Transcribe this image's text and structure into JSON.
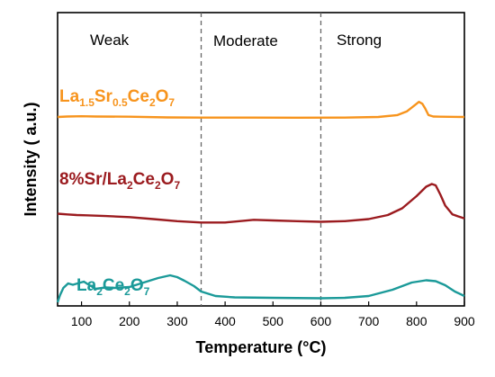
{
  "chart_data": {
    "type": "line",
    "xlabel": "Temperature (°C)",
    "ylabel": "Intensity ( a.u.)",
    "xlim": [
      50,
      900
    ],
    "xticks": [
      100,
      200,
      300,
      400,
      500,
      600,
      700,
      800,
      900
    ],
    "regions": [
      {
        "label": "Weak"
      },
      {
        "label": "Moderate"
      },
      {
        "label": "Strong"
      }
    ],
    "dividers": [
      350,
      600
    ],
    "grid": false,
    "legend": "none",
    "series": [
      {
        "name": "La1.5Sr0.5Ce2O7",
        "label_parts": [
          [
            "La",
            ""
          ],
          [
            "1.5",
            "sub"
          ],
          [
            "Sr",
            ""
          ],
          [
            "0.5",
            "sub"
          ],
          [
            "Ce",
            ""
          ],
          [
            "2",
            "sub"
          ],
          [
            "O",
            ""
          ],
          [
            "7",
            "sub"
          ]
        ],
        "color": "#F7941D",
        "points": [
          [
            50,
            0.84
          ],
          [
            70,
            0.845
          ],
          [
            100,
            0.848
          ],
          [
            130,
            0.845
          ],
          [
            200,
            0.843
          ],
          [
            280,
            0.835
          ],
          [
            350,
            0.833
          ],
          [
            450,
            0.833
          ],
          [
            550,
            0.832
          ],
          [
            650,
            0.833
          ],
          [
            720,
            0.84
          ],
          [
            760,
            0.86
          ],
          [
            780,
            0.9
          ],
          [
            795,
            0.96
          ],
          [
            805,
            1.0
          ],
          [
            812,
            0.98
          ],
          [
            818,
            0.93
          ],
          [
            825,
            0.86
          ],
          [
            835,
            0.845
          ],
          [
            850,
            0.843
          ],
          [
            900,
            0.84
          ]
        ]
      },
      {
        "name": "8%Sr/La2Ce2O7",
        "label_parts": [
          [
            "8%Sr/La",
            ""
          ],
          [
            "2",
            "sub"
          ],
          [
            "Ce",
            ""
          ],
          [
            "2",
            "sub"
          ],
          [
            "O",
            ""
          ],
          [
            "7",
            "sub"
          ]
        ],
        "color": "#9B1B1F",
        "points": [
          [
            50,
            0.56
          ],
          [
            70,
            0.555
          ],
          [
            90,
            0.55
          ],
          [
            110,
            0.548
          ],
          [
            150,
            0.543
          ],
          [
            200,
            0.535
          ],
          [
            250,
            0.52
          ],
          [
            300,
            0.505
          ],
          [
            350,
            0.495
          ],
          [
            400,
            0.495
          ],
          [
            430,
            0.505
          ],
          [
            460,
            0.515
          ],
          [
            500,
            0.51
          ],
          [
            550,
            0.505
          ],
          [
            600,
            0.5
          ],
          [
            650,
            0.505
          ],
          [
            700,
            0.52
          ],
          [
            740,
            0.55
          ],
          [
            770,
            0.6
          ],
          [
            800,
            0.69
          ],
          [
            820,
            0.76
          ],
          [
            832,
            0.78
          ],
          [
            840,
            0.77
          ],
          [
            850,
            0.7
          ],
          [
            860,
            0.62
          ],
          [
            875,
            0.555
          ],
          [
            900,
            0.525
          ]
        ]
      },
      {
        "name": "La2Ce2O7",
        "label_parts": [
          [
            "La",
            ""
          ],
          [
            "2",
            "sub"
          ],
          [
            "Ce",
            ""
          ],
          [
            "2",
            "sub"
          ],
          [
            "O",
            ""
          ],
          [
            "7",
            "sub"
          ]
        ],
        "color": "#1B9A99",
        "points": [
          [
            50,
            0.0
          ],
          [
            55,
            0.08
          ],
          [
            62,
            0.16
          ],
          [
            72,
            0.21
          ],
          [
            82,
            0.195
          ],
          [
            95,
            0.215
          ],
          [
            105,
            0.23
          ],
          [
            115,
            0.195
          ],
          [
            130,
            0.15
          ],
          [
            150,
            0.165
          ],
          [
            170,
            0.16
          ],
          [
            200,
            0.17
          ],
          [
            230,
            0.22
          ],
          [
            260,
            0.27
          ],
          [
            285,
            0.3
          ],
          [
            300,
            0.28
          ],
          [
            315,
            0.24
          ],
          [
            335,
            0.18
          ],
          [
            350,
            0.12
          ],
          [
            380,
            0.07
          ],
          [
            420,
            0.055
          ],
          [
            500,
            0.05
          ],
          [
            600,
            0.045
          ],
          [
            650,
            0.05
          ],
          [
            700,
            0.07
          ],
          [
            750,
            0.14
          ],
          [
            790,
            0.22
          ],
          [
            820,
            0.245
          ],
          [
            840,
            0.235
          ],
          [
            860,
            0.19
          ],
          [
            880,
            0.12
          ],
          [
            900,
            0.07
          ]
        ]
      }
    ]
  }
}
